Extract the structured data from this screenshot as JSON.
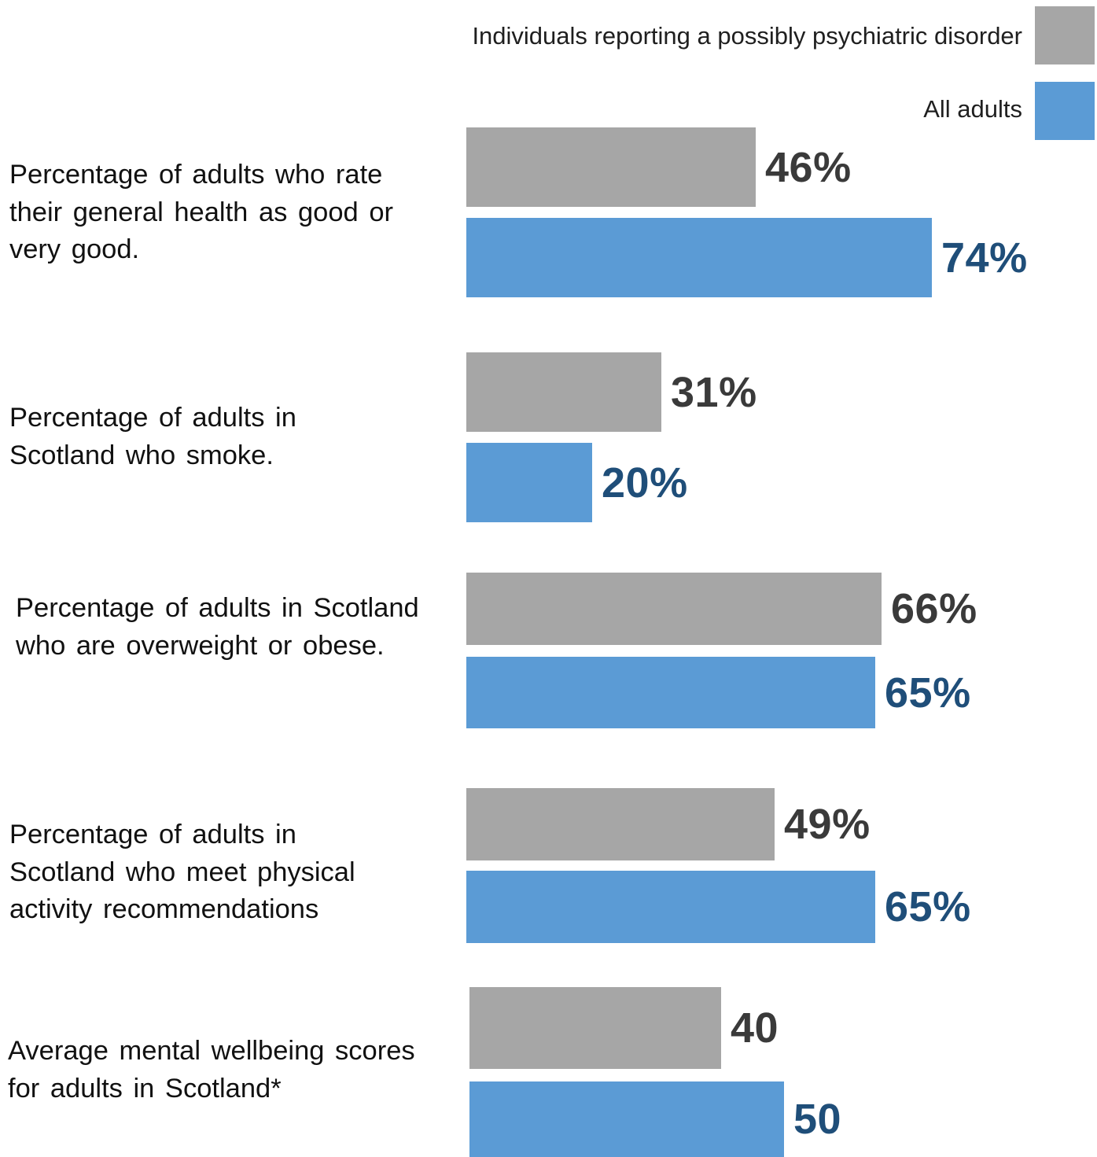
{
  "colors": {
    "group": "#a6a6a6",
    "all": "#5b9bd5",
    "group_text": "#3a3a3a",
    "all_text": "#1f4e79"
  },
  "chart_data": {
    "type": "bar",
    "orientation": "horizontal",
    "legend": [
      "Individuals reporting a possibly psychiatric disorder",
      "All adults"
    ],
    "legend_placement": "top-right",
    "categories": [
      "Percentage of adults who rate their general health as good or very good.",
      "Percentage of adults in Scotland who smoke.",
      "Percentage of adults in Scotland who are overweight or obese.",
      "Percentage of adults in Scotland who meet physical activity recommendations",
      "Average mental wellbeing scores for adults in Scotland*"
    ],
    "series": [
      {
        "name": "Individuals reporting a possibly psychiatric disorder",
        "values": [
          46,
          31,
          66,
          49,
          40
        ],
        "labels": [
          "46%",
          "31%",
          "66%",
          "49%",
          "40"
        ]
      },
      {
        "name": "All adults",
        "values": [
          74,
          20,
          65,
          65,
          50
        ],
        "labels": [
          "74%",
          "20%",
          "65%",
          "65%",
          "50"
        ]
      }
    ],
    "xlim": [
      0,
      100
    ],
    "grid": false,
    "axes_visible": false
  }
}
